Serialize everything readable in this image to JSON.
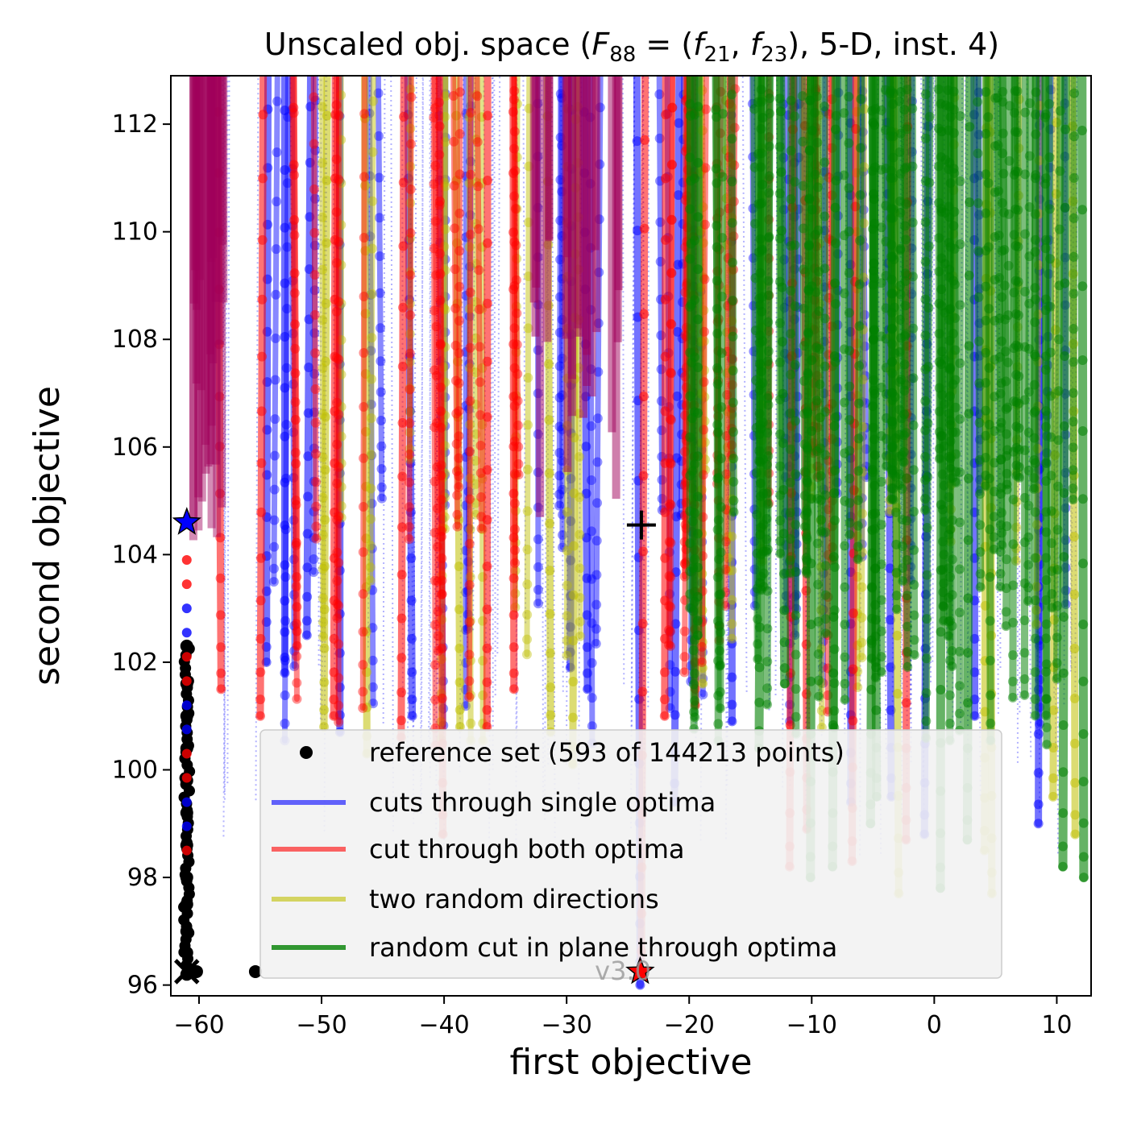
{
  "chart_data": {
    "type": "line",
    "title": "Unscaled obj. space (F88 = (f21, f23), 5-D, inst. 4)",
    "xlabel": "first objective",
    "ylabel": "second objective",
    "xlim": [
      -62.3,
      12.8
    ],
    "ylim": [
      95.8,
      112.9
    ],
    "xticks": [
      -60,
      -50,
      -40,
      -30,
      -20,
      -10,
      0,
      10
    ],
    "yticks": [
      96,
      98,
      100,
      102,
      104,
      106,
      108,
      110,
      112
    ],
    "xtick_labels": [
      "−60",
      "−50",
      "−40",
      "−30",
      "−20",
      "−10",
      "0",
      "10"
    ],
    "ytick_labels": [
      "96",
      "98",
      "100",
      "102",
      "104",
      "106",
      "108",
      "110",
      "112"
    ],
    "grid": false,
    "legend_position": "lower-center",
    "series": [
      {
        "name": "reference set (593 of 144213 points)",
        "color": "#000000",
        "marker": "dot",
        "points": [
          [
            -61,
            96.2
          ],
          [
            -61,
            96.6
          ],
          [
            -61,
            97.0
          ],
          [
            -61,
            97.5
          ],
          [
            -61,
            98.0
          ],
          [
            -61,
            98.6
          ],
          [
            -61,
            99.2
          ],
          [
            -61,
            99.8
          ],
          [
            -61,
            100.4
          ],
          [
            -61,
            101.0
          ],
          [
            -61,
            101.6
          ],
          [
            -61,
            102.3
          ],
          [
            -60.2,
            96.25
          ],
          [
            -55.4,
            96.25
          ]
        ]
      },
      {
        "name": "cuts through single optima",
        "color": "#0000ff",
        "cuts": [
          [
            -54.5,
            102.0
          ],
          [
            -53.0,
            101.8
          ],
          [
            -51.2,
            102.5
          ],
          [
            -48.5,
            100.7
          ],
          [
            -42.6,
            101.0
          ],
          [
            -29.7,
            101.9
          ],
          [
            -28.3,
            101.5
          ],
          [
            -24.0,
            96.0
          ],
          [
            -21.2,
            99.4
          ],
          [
            -16.5,
            100.9
          ],
          [
            -6.8,
            99.4
          ],
          [
            -3.5,
            99.5
          ],
          [
            -0.8,
            98.8
          ],
          [
            3.3,
            101.0
          ],
          [
            8.5,
            99.0
          ]
        ]
      },
      {
        "name": "cut through both optima",
        "color": "#ff0000",
        "cuts": [
          [
            -58.2,
            101.5
          ],
          [
            -55.0,
            101.0
          ],
          [
            -52.0,
            102.3
          ],
          [
            -49.0,
            101.0
          ],
          [
            -43.5,
            100.6
          ],
          [
            -40.1,
            98.8
          ],
          [
            -36.5,
            100.8
          ],
          [
            -34.3,
            101.5
          ],
          [
            -23.9,
            96.2
          ],
          [
            -22.0,
            101.0
          ],
          [
            -19.5,
            101.2
          ],
          [
            -11.8,
            98.2
          ],
          [
            -10.4,
            98.9
          ],
          [
            -6.7,
            98.3
          ],
          [
            -2.3,
            98.7
          ]
        ]
      },
      {
        "name": "two random directions",
        "color": "#bfbf00",
        "cuts": [
          [
            -49.8,
            100.8
          ],
          [
            -46.3,
            100.3
          ],
          [
            -38.7,
            100.8
          ],
          [
            -31.3,
            100.7
          ],
          [
            -29.5,
            100.1
          ],
          [
            -18.9,
            101.6
          ],
          [
            -2.9,
            97.7
          ],
          [
            4.1,
            98.5
          ],
          [
            4.7,
            97.7
          ],
          [
            9.7,
            99.5
          ],
          [
            11.5,
            98.8
          ]
        ]
      },
      {
        "name": "random cut in plane through optima",
        "color": "#008000",
        "cuts": [
          [
            -19.3,
            102.5
          ],
          [
            -14.3,
            100.4
          ],
          [
            -12.2,
            101.6
          ],
          [
            -10.1,
            98.0
          ],
          [
            -8.3,
            98.2
          ],
          [
            -4.7,
            99.5
          ],
          [
            0.5,
            97.8
          ],
          [
            -5.2,
            99.0
          ],
          [
            2.7,
            98.7
          ],
          [
            10.5,
            98.2
          ],
          [
            12.2,
            98.0
          ]
        ]
      }
    ],
    "markers": [
      {
        "name": "blue star",
        "x": -61.0,
        "y": 104.6,
        "symbol": "star",
        "color": "#0000ff"
      },
      {
        "name": "red star",
        "x": -24.0,
        "y": 96.25,
        "symbol": "star",
        "color": "#ff0000"
      },
      {
        "name": "plus",
        "x": -23.9,
        "y": 104.55,
        "symbol": "plus",
        "color": "#000000"
      },
      {
        "name": "x",
        "x": -61.0,
        "y": 96.25,
        "symbol": "x",
        "color": "#000000"
      }
    ],
    "annotations": [
      {
        "text": "v3.0",
        "x": -27.7,
        "y": 96.25
      }
    ]
  }
}
